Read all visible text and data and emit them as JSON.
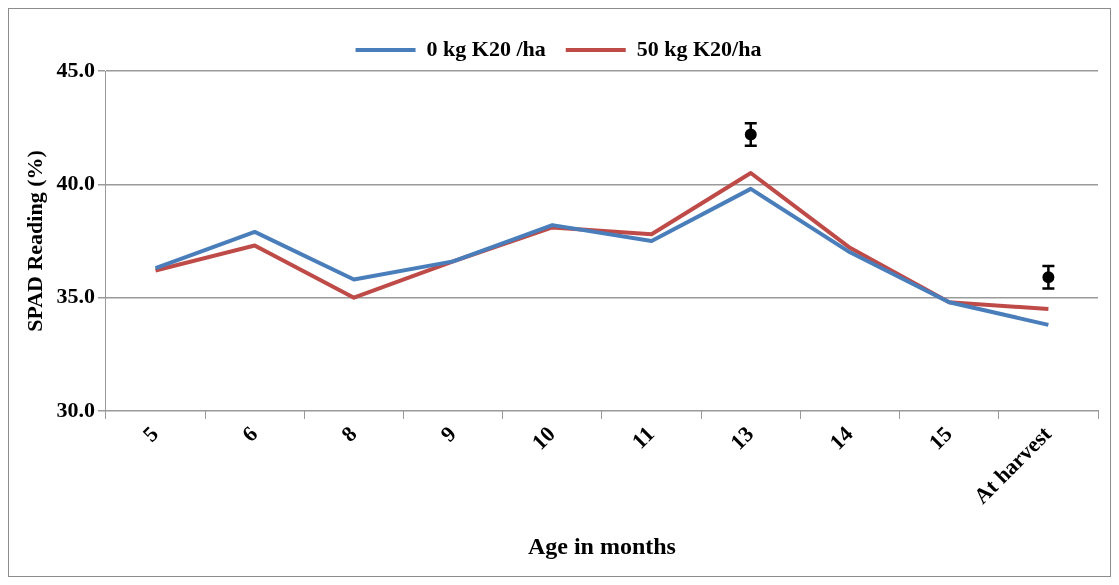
{
  "chart_data": {
    "type": "line",
    "xlabel": "Age in months",
    "ylabel": "SPAD Reading (%)",
    "categories": [
      "5",
      "6",
      "8",
      "9",
      "10",
      "11",
      "13",
      "14",
      "15",
      "At harvest"
    ],
    "series": [
      {
        "name": "0 kg K20 /ha",
        "color": "#4a7ebb",
        "values": [
          36.3,
          37.9,
          35.8,
          36.6,
          38.2,
          37.5,
          39.8,
          37.0,
          34.8,
          33.8
        ]
      },
      {
        "name": "50 kg K20/ha",
        "color": "#be4b48",
        "values": [
          36.2,
          37.3,
          35.0,
          36.6,
          38.1,
          37.8,
          40.5,
          37.2,
          34.8,
          34.5
        ]
      },
      {
        "type": "scatter",
        "marker": "circle",
        "color": "#000000",
        "values": [
          null,
          null,
          null,
          null,
          null,
          null,
          42.2,
          null,
          null,
          35.9
        ],
        "errors": [
          null,
          null,
          null,
          null,
          null,
          null,
          0.5,
          null,
          null,
          0.5
        ]
      }
    ],
    "ylim": [
      30,
      45
    ],
    "yticks": [
      {
        "value": 30,
        "label": "30.0"
      },
      {
        "value": 35,
        "label": "35.0"
      },
      {
        "value": 40,
        "label": "40.0"
      },
      {
        "value": 45,
        "label": "45.0"
      }
    ],
    "grid": "y",
    "legend": "top",
    "marker": "none",
    "line_style": "solid"
  }
}
